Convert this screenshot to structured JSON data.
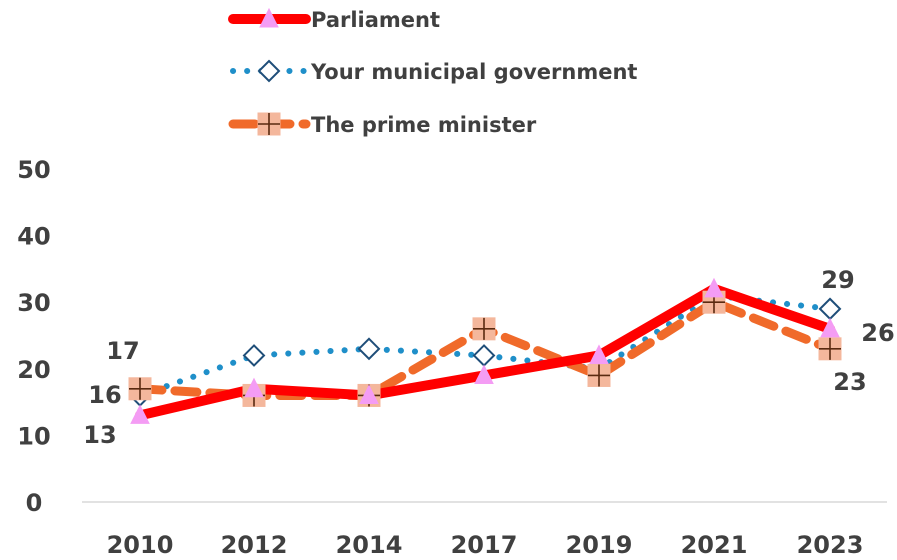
{
  "chart_data": {
    "type": "line",
    "title": "",
    "xlabel": "",
    "ylabel": "",
    "categories": [
      "2010",
      "2012",
      "2014",
      "2017",
      "2019",
      "2021",
      "2023"
    ],
    "ylim": [
      0,
      50
    ],
    "yticks": [
      0,
      10,
      20,
      30,
      40,
      50
    ],
    "grid": false,
    "legend_position": "top",
    "series": [
      {
        "name": "Parliament",
        "values": [
          13,
          17,
          16,
          19,
          22,
          32,
          26
        ],
        "color": "#ff0000",
        "marker_color": "#f49cf4",
        "line_style": "solid",
        "marker": "triangle"
      },
      {
        "name": "Your municipal government",
        "values": [
          16,
          22,
          23,
          22,
          20,
          31,
          29
        ],
        "color": "#1f8fc9",
        "marker_color": "#1f4e79",
        "line_style": "dotted",
        "marker": "diamond"
      },
      {
        "name": "The prime minister",
        "values": [
          17,
          16,
          16,
          26,
          19,
          30,
          23
        ],
        "color": "#f06a2a",
        "marker_color": "#f4b79c",
        "line_style": "dashed",
        "marker": "square-plus"
      }
    ],
    "data_labels": [
      {
        "series": 2,
        "index": 0,
        "text": "17"
      },
      {
        "series": 1,
        "index": 0,
        "text": "16"
      },
      {
        "series": 0,
        "index": 0,
        "text": "13"
      },
      {
        "series": 1,
        "index": 6,
        "text": "29"
      },
      {
        "series": 0,
        "index": 6,
        "text": "26"
      },
      {
        "series": 2,
        "index": 6,
        "text": "23"
      }
    ],
    "colors": {
      "axis": "#d9d9d9",
      "text": "#404040"
    }
  }
}
